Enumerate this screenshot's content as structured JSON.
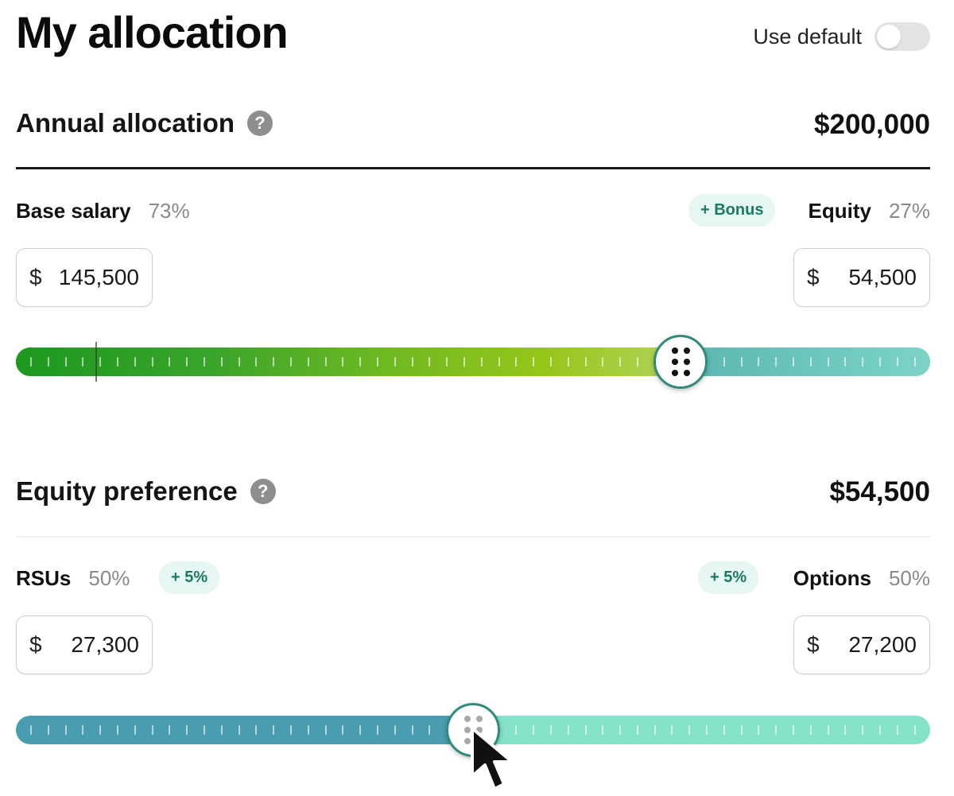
{
  "page": {
    "title": "My allocation"
  },
  "use_default": {
    "label": "Use default",
    "enabled": false
  },
  "annual": {
    "title": "Annual allocation",
    "amount": "$200,000",
    "left": {
      "name": "Base salary",
      "percent": "73%",
      "currency": "$",
      "value": "145,500"
    },
    "bonus_pill": "+ Bonus",
    "right": {
      "name": "Equity",
      "percent": "27%",
      "currency": "$",
      "value": "54,500"
    },
    "slider_fraction": 0.727
  },
  "equity": {
    "title": "Equity preference",
    "amount": "$54,500",
    "left": {
      "name": "RSUs",
      "percent": "50%",
      "pill": "+ 5%",
      "currency": "$",
      "value": "27,300"
    },
    "right": {
      "name": "Options",
      "percent": "50%",
      "pill": "+ 5%",
      "currency": "$",
      "value": "27,200"
    },
    "slider_fraction": 0.5
  },
  "icons": {
    "help": "question-circle-icon",
    "thumb": "drag-handle-icon",
    "cursor": "mouse-pointer-icon"
  },
  "colors": {
    "salary_start": "#1d981f",
    "salary_end": "#b2d35d",
    "equity_bar": "#7bd4c6",
    "rsu_bar": "#4a9db0",
    "options_bar": "#84e2c8",
    "thumb_ring": "#2f8c7a",
    "pill_bg": "#e6f6f2",
    "pill_text": "#1c7a62"
  }
}
